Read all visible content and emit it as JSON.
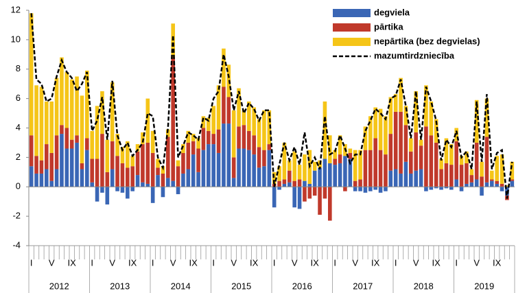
{
  "chart_data": {
    "type": "bar",
    "stacked": true,
    "categories": [
      "I",
      null,
      null,
      null,
      "V",
      null,
      null,
      null,
      "IX",
      null,
      null,
      null,
      "I",
      null,
      null,
      null,
      "V",
      null,
      null,
      null,
      "IX",
      null,
      null,
      null,
      "I",
      null,
      null,
      null,
      "V",
      null,
      null,
      null,
      "IX",
      null,
      null,
      null,
      "I",
      null,
      null,
      null,
      "V",
      null,
      null,
      null,
      "IX",
      null,
      null,
      null,
      "I",
      null,
      null,
      null,
      "V",
      null,
      null,
      null,
      "IX",
      null,
      null,
      null,
      "I",
      null,
      null,
      null,
      "V",
      null,
      null,
      null,
      "IX",
      null,
      null,
      null,
      "I",
      null,
      null,
      null,
      "V",
      null,
      null,
      null,
      "IX",
      null,
      null,
      null,
      "I",
      null,
      null,
      null,
      "V",
      null,
      null,
      null,
      "IX",
      null,
      null,
      null
    ],
    "years": [
      "2012",
      "2013",
      "2014",
      "2015",
      "2016",
      "2017",
      "2018",
      "2019"
    ],
    "series": [
      {
        "name": "degviela",
        "color": "#3a66b5",
        "values": [
          1.4,
          0.9,
          0.9,
          1.2,
          0.4,
          1.2,
          3.6,
          2.6,
          2.6,
          3.0,
          1.2,
          2.5,
          0.3,
          -1.0,
          -0.4,
          -1.2,
          1.2,
          -0.3,
          -0.4,
          -0.8,
          -0.3,
          0.8,
          0.3,
          0.2,
          -1.1,
          0.8,
          -0.7,
          0.6,
          0.4,
          -0.5,
          0.9,
          1.2,
          2.2,
          1.0,
          2.5,
          2.9,
          2.9,
          2.3,
          4.3,
          4.3,
          0.6,
          2.6,
          2.6,
          2.5,
          2.2,
          1.3,
          1.4,
          2.5,
          -1.4,
          -0.2,
          0.2,
          0.3,
          -1.4,
          -1.5,
          0.4,
          0.2,
          1.1,
          1.3,
          1.9,
          1.6,
          1.5,
          1.6,
          2.1,
          1.9,
          -0.3,
          -0.3,
          -0.4,
          -0.3,
          -0.2,
          -0.4,
          -0.3,
          1.1,
          1.2,
          0.9,
          1.7,
          0.9,
          1.1,
          1.2,
          -0.3,
          -0.2,
          -0.1,
          -0.2,
          -0.1,
          -0.2,
          0.5,
          -0.3,
          0.2,
          0.3,
          0.5,
          -0.6,
          0.3,
          0.4,
          0.2,
          -0.3,
          -0.6,
          0.4
        ]
      },
      {
        "name": "pārtika",
        "color": "#c0392b",
        "values": [
          2.1,
          1.2,
          0.9,
          1.7,
          1.9,
          2.3,
          0.6,
          1.4,
          0.6,
          0.5,
          0.4,
          0.8,
          1.6,
          1.9,
          3.6,
          1.0,
          1.9,
          2.1,
          1.6,
          1.3,
          1.4,
          1.6,
          2.6,
          2.8,
          2.3,
          0.5,
          0.9,
          2.8,
          8.4,
          1.4,
          1.4,
          1.8,
          0.9,
          1.6,
          1.5,
          0.9,
          0.7,
          1.6,
          2.5,
          1.8,
          1.4,
          1.5,
          1.6,
          1.3,
          1.3,
          1.4,
          1.1,
          0.4,
          0.2,
          0.4,
          0.3,
          0.8,
          0.4,
          0.5,
          -1.0,
          -0.8,
          -0.6,
          -1.9,
          -0.8,
          -2.3,
          0.4,
          0.6,
          -0.3,
          0.4,
          0.4,
          0.5,
          2.5,
          2.5,
          3.3,
          2.5,
          2.2,
          2.5,
          3.9,
          4.2,
          2.5,
          1.5,
          2.6,
          1.6,
          4.1,
          3.5,
          3.0,
          1.2,
          1.6,
          1.5,
          2.6,
          1.5,
          1.4,
          0.5,
          2.5,
          0.7,
          3.1,
          0.1,
          0.2,
          0.2,
          -0.3,
          0.1
        ]
      },
      {
        "name": "nepārtika (bez degvielas)",
        "color": "#f5c518",
        "values": [
          8.3,
          4.8,
          5.0,
          2.9,
          3.5,
          3.9,
          4.6,
          3.8,
          4.1,
          4.0,
          4.6,
          4.6,
          1.9,
          3.6,
          2.9,
          2.2,
          4.0,
          1.5,
          1.1,
          1.8,
          0.7,
          0.5,
          0.8,
          3.0,
          1.5,
          0.6,
          0.5,
          0.5,
          2.3,
          0.4,
          0.6,
          0.8,
          0.5,
          0.7,
          0.8,
          0.9,
          1.9,
          3.0,
          2.6,
          2.2,
          3.2,
          2.6,
          1.0,
          2.0,
          1.9,
          1.9,
          2.7,
          2.3,
          0.8,
          1.0,
          2.5,
          0.7,
          2.0,
          1.0,
          1.8,
          2.3,
          0.6,
          0.5,
          3.9,
          1.9,
          0.6,
          1.3,
          0.8,
          0.3,
          2.1,
          2.0,
          1.6,
          2.3,
          2.1,
          2.8,
          2.6,
          2.5,
          1.2,
          2.3,
          1.3,
          0.9,
          2.8,
          0.4,
          2.8,
          2.3,
          1.6,
          0.7,
          1.7,
          1.4,
          0.9,
          0.6,
          0.8,
          0.4,
          2.9,
          1.0,
          2.6,
          0.6,
          1.7,
          2.0,
          0.1,
          1.2
        ]
      },
      {
        "name": "mazumtirdzniecība",
        "color": "#000000",
        "type": "line",
        "values": [
          11.8,
          7.3,
          7.0,
          5.8,
          6.0,
          7.5,
          8.6,
          7.8,
          7.4,
          6.5,
          7.0,
          7.8,
          3.8,
          4.5,
          6.1,
          3.2,
          7.2,
          3.5,
          2.5,
          3.0,
          2.1,
          2.5,
          3.0,
          5.0,
          4.8,
          2.0,
          1.3,
          4.0,
          10.3,
          2.0,
          2.8,
          3.7,
          3.5,
          3.2,
          4.7,
          4.5,
          6.0,
          6.5,
          9.0,
          7.5,
          5.2,
          6.5,
          5.0,
          5.7,
          5.3,
          4.5,
          5.2,
          5.2,
          0.0,
          1.5,
          3.0,
          1.8,
          2.7,
          1.5,
          3.7,
          1.4,
          2.0,
          1.2,
          4.8,
          2.2,
          2.4,
          3.5,
          2.6,
          1.6,
          2.2,
          2.2,
          3.8,
          4.5,
          5.3,
          5.0,
          4.6,
          6.0,
          6.2,
          7.3,
          5.5,
          3.3,
          6.5,
          3.2,
          6.8,
          5.8,
          4.5,
          1.8,
          3.2,
          2.7,
          3.8,
          2.0,
          2.4,
          1.2,
          5.8,
          1.7,
          6.3,
          1.2,
          2.3,
          2.5,
          -0.8,
          1.7
        ]
      }
    ],
    "ylim": [
      -4,
      12
    ],
    "yticks": [
      -4,
      -2,
      0,
      2,
      4,
      6,
      8,
      10,
      12
    ],
    "legend": "top-right"
  }
}
